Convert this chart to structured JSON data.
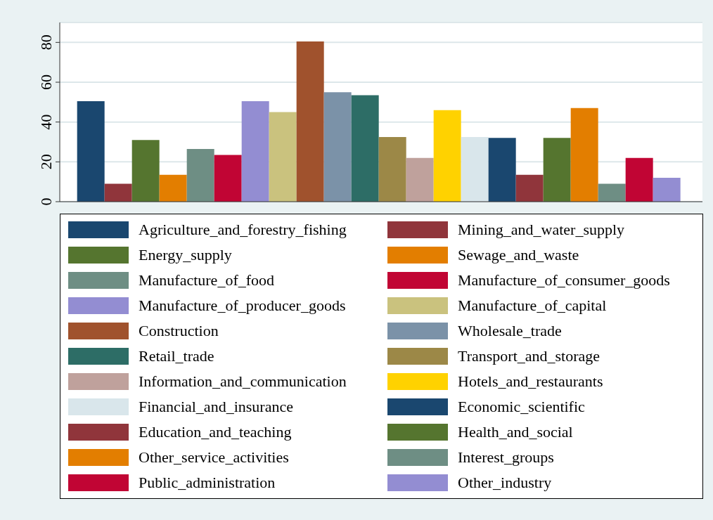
{
  "chart_data": {
    "type": "bar",
    "categories": [
      null
    ],
    "series": [
      {
        "name": "Agriculture_and_forestry_fishing",
        "color": "#1a476f",
        "values": [
          50.5
        ]
      },
      {
        "name": "Mining_and_water_supply",
        "color": "#90353b",
        "values": [
          9
        ]
      },
      {
        "name": "Energy_supply",
        "color": "#55752f",
        "values": [
          31
        ]
      },
      {
        "name": "Sewage_and_waste",
        "color": "#e37e00",
        "values": [
          13.5
        ]
      },
      {
        "name": "Manufacture_of_food",
        "color": "#6e8e84",
        "values": [
          26.5
        ]
      },
      {
        "name": "Manufacture_of_consumer_goods",
        "color": "#c10534",
        "values": [
          23.5
        ]
      },
      {
        "name": "Manufacture_of_producer_goods",
        "color": "#938dd2",
        "values": [
          50.5
        ]
      },
      {
        "name": "Manufacture_of_capital",
        "color": "#cac27e",
        "values": [
          45
        ]
      },
      {
        "name": "Construction",
        "color": "#a0522d",
        "values": [
          80.5
        ]
      },
      {
        "name": "Wholesale_trade",
        "color": "#7b92a8",
        "values": [
          55
        ]
      },
      {
        "name": "Retail_trade",
        "color": "#2d6d66",
        "values": [
          53.5
        ]
      },
      {
        "name": "Transport_and_storage",
        "color": "#9c8847",
        "values": [
          32.5
        ]
      },
      {
        "name": "Information_and_communication",
        "color": "#bfa19c",
        "values": [
          22
        ]
      },
      {
        "name": "Hotels_and_restaurants",
        "color": "#ffd200",
        "values": [
          46
        ]
      },
      {
        "name": "Financial_and_insurance",
        "color": "#d9e6eb",
        "values": [
          32.5
        ]
      },
      {
        "name": "Economic_scientific",
        "color": "#1a476f",
        "values": [
          32
        ]
      },
      {
        "name": "Education_and_teaching",
        "color": "#90353b",
        "values": [
          13.5
        ]
      },
      {
        "name": "Health_and_social",
        "color": "#55752f",
        "values": [
          32
        ]
      },
      {
        "name": "Other_service_activities",
        "color": "#e37e00",
        "values": [
          47
        ]
      },
      {
        "name": "Interest_groups",
        "color": "#6e8e84",
        "values": [
          9
        ]
      },
      {
        "name": "Public_administration",
        "color": "#c10534",
        "values": [
          22
        ]
      },
      {
        "name": "Other_industry",
        "color": "#938dd2",
        "values": [
          12
        ]
      }
    ],
    "ylim": [
      0,
      90
    ],
    "yticks": [
      0,
      20,
      40,
      60,
      80
    ],
    "grid": "y",
    "legend": "bottom"
  }
}
